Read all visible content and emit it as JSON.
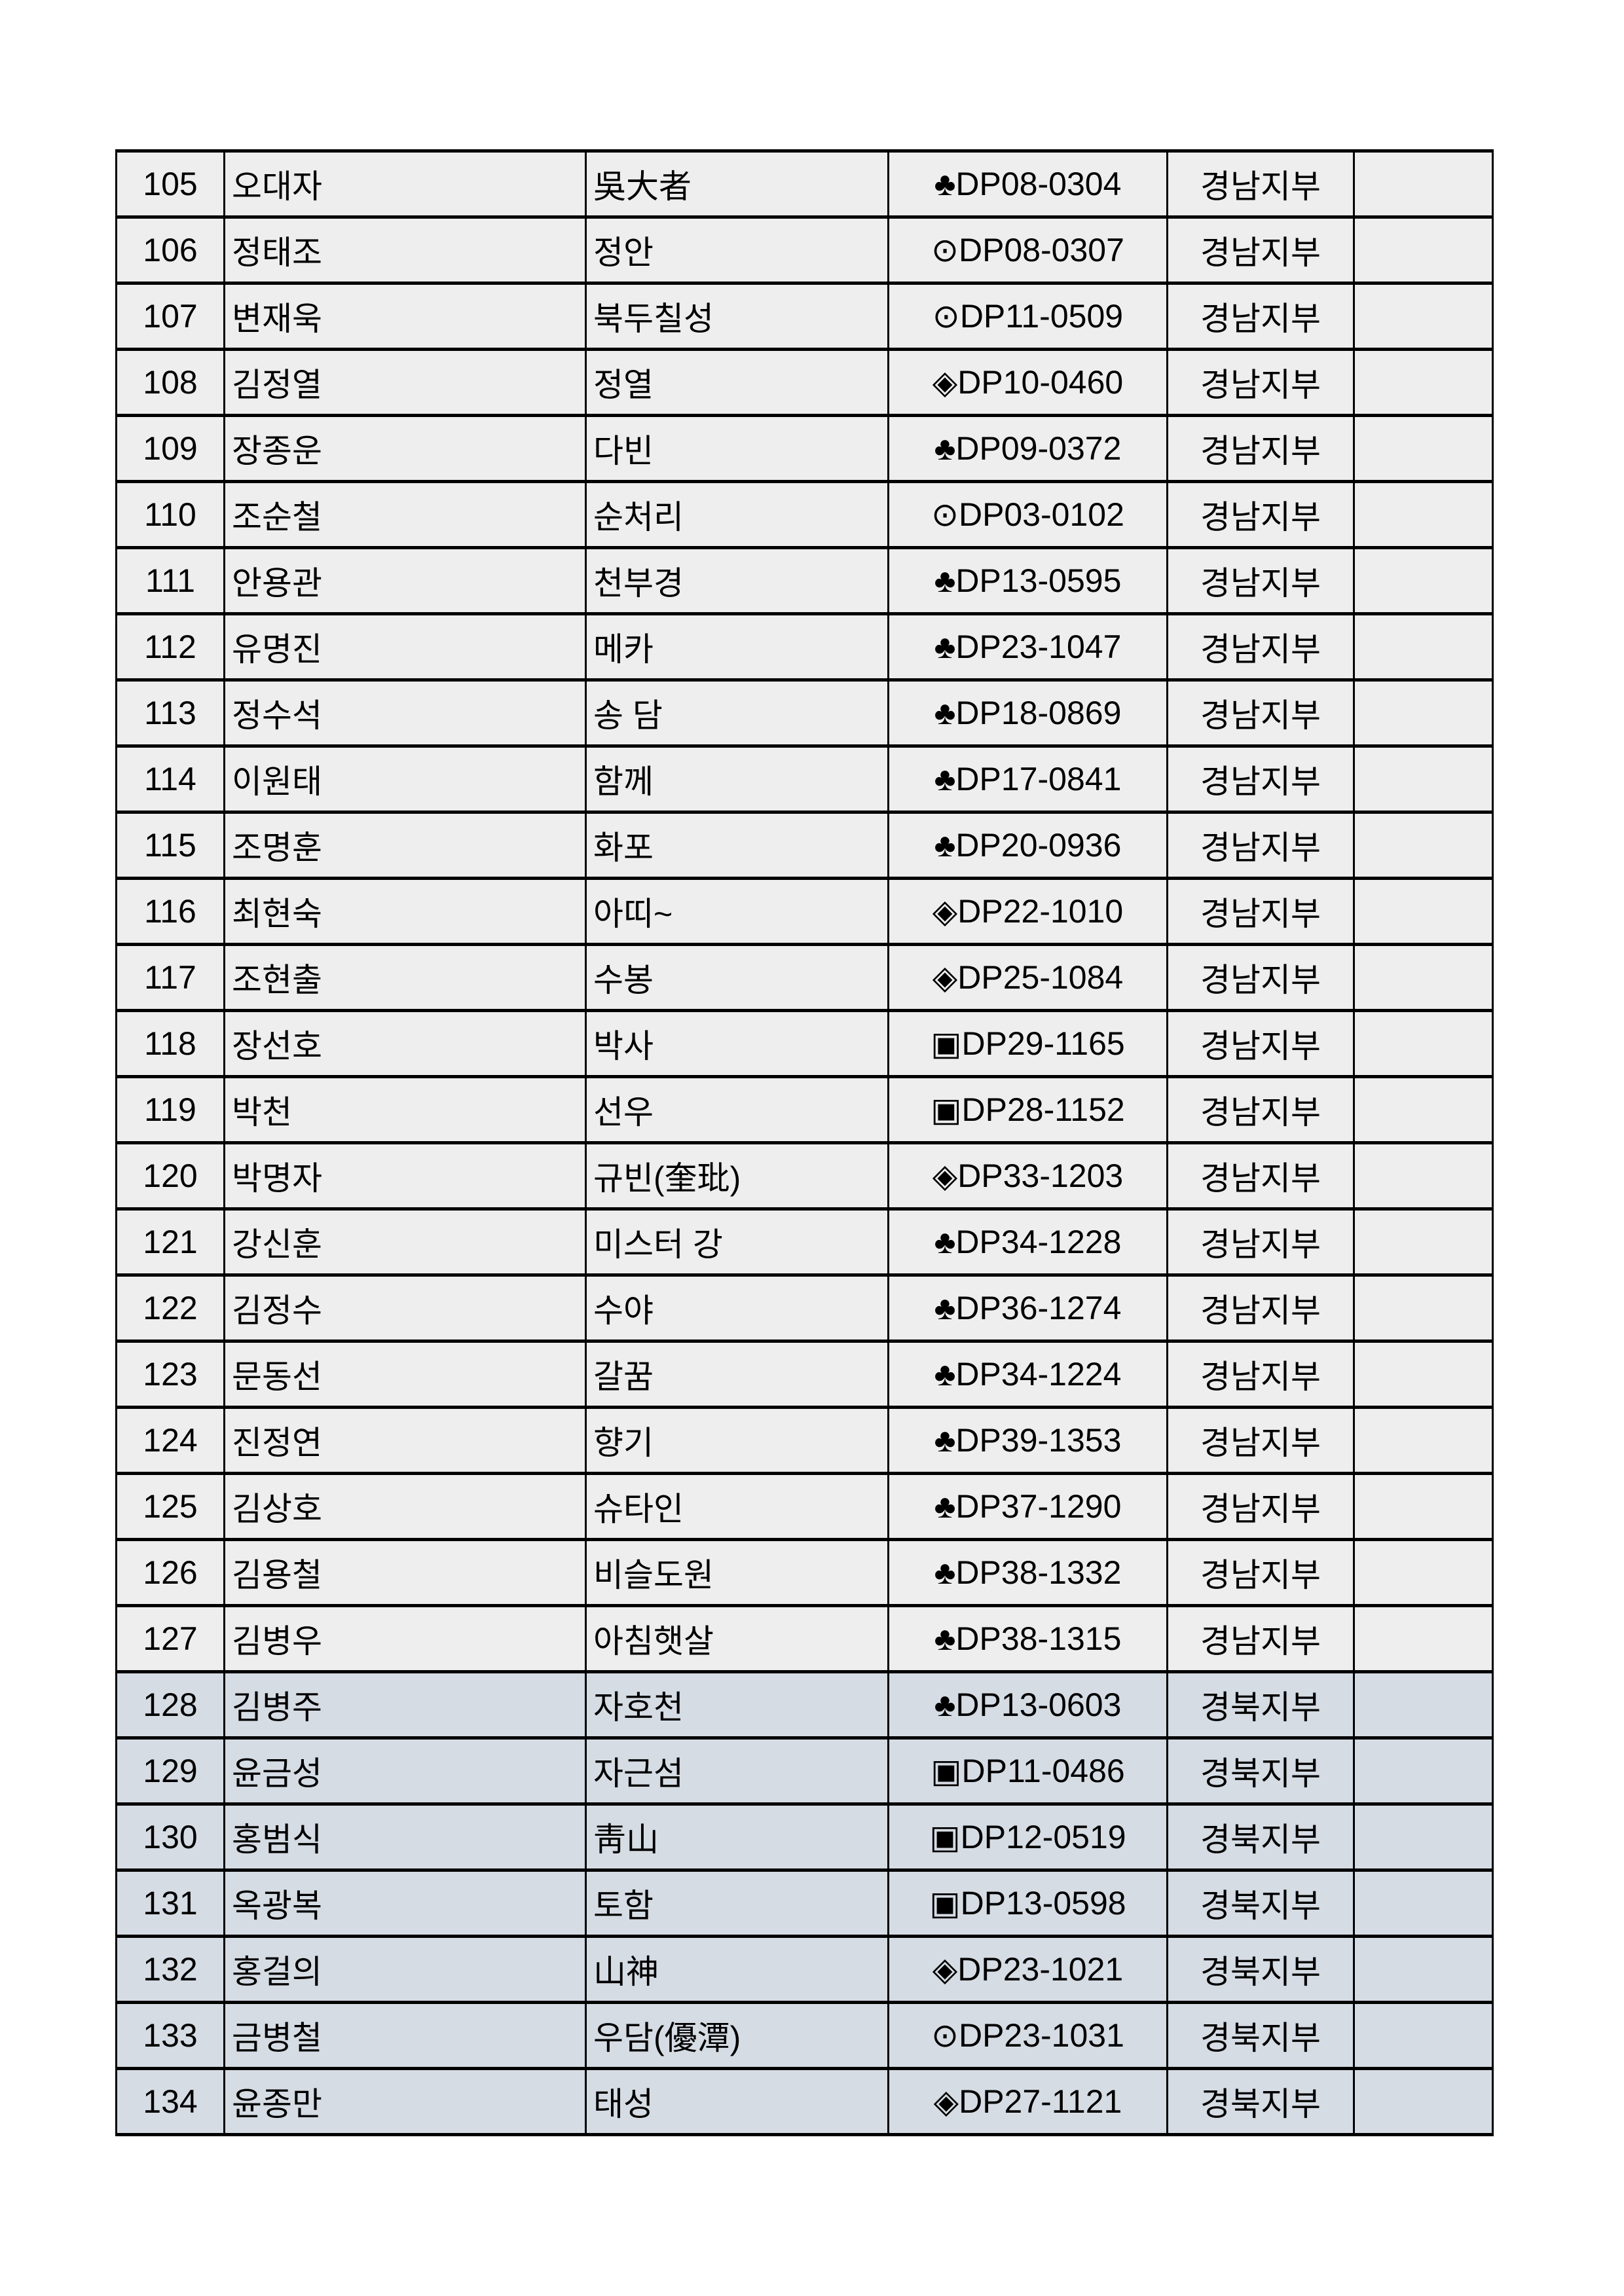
{
  "colors": {
    "gyeongnam_row": "#eeeeee",
    "gyeongbuk_row": "#d6dce4",
    "border": "#000000"
  },
  "rows": [
    {
      "no": "105",
      "name": "오대자",
      "nick": "吳大者",
      "code": "♣DP08-0304",
      "branch": "경남지부",
      "note": ""
    },
    {
      "no": "106",
      "name": "정태조",
      "nick": "정안",
      "code": "⊙DP08-0307",
      "branch": "경남지부",
      "note": ""
    },
    {
      "no": "107",
      "name": "변재욱",
      "nick": "북두칠성",
      "code": "⊙DP11-0509",
      "branch": "경남지부",
      "note": ""
    },
    {
      "no": "108",
      "name": "김정열",
      "nick": "정열",
      "code": "◈DP10-0460",
      "branch": "경남지부",
      "note": ""
    },
    {
      "no": "109",
      "name": "장종운",
      "nick": "다빈",
      "code": "♣DP09-0372",
      "branch": "경남지부",
      "note": ""
    },
    {
      "no": "110",
      "name": "조순철",
      "nick": "순처리",
      "code": "⊙DP03-0102",
      "branch": "경남지부",
      "note": ""
    },
    {
      "no": "111",
      "name": "안용관",
      "nick": "천부경",
      "code": "♣DP13-0595",
      "branch": "경남지부",
      "note": ""
    },
    {
      "no": "112",
      "name": "유명진",
      "nick": "메카",
      "code": "♣DP23-1047",
      "branch": "경남지부",
      "note": ""
    },
    {
      "no": "113",
      "name": "정수석",
      "nick": "송 담",
      "code": "♣DP18-0869",
      "branch": "경남지부",
      "note": ""
    },
    {
      "no": "114",
      "name": "이원태",
      "nick": "함께",
      "code": "♣DP17-0841",
      "branch": "경남지부",
      "note": ""
    },
    {
      "no": "115",
      "name": "조명훈",
      "nick": "화포",
      "code": "♣DP20-0936",
      "branch": "경남지부",
      "note": ""
    },
    {
      "no": "116",
      "name": "최현숙",
      "nick": "아띠~",
      "code": "◈DP22-1010",
      "branch": "경남지부",
      "note": ""
    },
    {
      "no": "117",
      "name": "조현출",
      "nick": "수봉",
      "code": "◈DP25-1084",
      "branch": "경남지부",
      "note": ""
    },
    {
      "no": "118",
      "name": "장선호",
      "nick": "박사",
      "code": "▣DP29-1165",
      "branch": "경남지부",
      "note": ""
    },
    {
      "no": "119",
      "name": "박천",
      "nick": "선우",
      "code": "▣DP28-1152",
      "branch": "경남지부",
      "note": ""
    },
    {
      "no": "120",
      "name": "박명자",
      "nick": "규빈(奎玭)",
      "code": "◈DP33-1203",
      "branch": "경남지부",
      "note": ""
    },
    {
      "no": "121",
      "name": "강신훈",
      "nick": "미스터 강",
      "code": "♣DP34-1228",
      "branch": "경남지부",
      "note": ""
    },
    {
      "no": "122",
      "name": "김정수",
      "nick": "수야",
      "code": "♣DP36-1274",
      "branch": "경남지부",
      "note": ""
    },
    {
      "no": "123",
      "name": "문동선",
      "nick": "갈꿈",
      "code": "♣DP34-1224",
      "branch": "경남지부",
      "note": ""
    },
    {
      "no": "124",
      "name": "진정연",
      "nick": "향기",
      "code": "♣DP39-1353",
      "branch": "경남지부",
      "note": ""
    },
    {
      "no": "125",
      "name": "김상호",
      "nick": "슈타인",
      "code": "♣DP37-1290",
      "branch": "경남지부",
      "note": ""
    },
    {
      "no": "126",
      "name": "김용철",
      "nick": "비슬도원",
      "code": "♣DP38-1332",
      "branch": "경남지부",
      "note": ""
    },
    {
      "no": "127",
      "name": "김병우",
      "nick": "아침햇살",
      "code": "♣DP38-1315",
      "branch": "경남지부",
      "note": ""
    },
    {
      "no": "128",
      "name": "김병주",
      "nick": "자호천",
      "code": "♣DP13-0603",
      "branch": "경북지부",
      "note": ""
    },
    {
      "no": "129",
      "name": "윤금성",
      "nick": "자근섬",
      "code": "▣DP11-0486",
      "branch": "경북지부",
      "note": ""
    },
    {
      "no": "130",
      "name": "홍범식",
      "nick": "靑山",
      "code": "▣DP12-0519",
      "branch": "경북지부",
      "note": ""
    },
    {
      "no": "131",
      "name": "옥광복",
      "nick": "토함",
      "code": "▣DP13-0598",
      "branch": "경북지부",
      "note": ""
    },
    {
      "no": "132",
      "name": "홍걸의",
      "nick": "山神",
      "code": "◈DP23-1021",
      "branch": "경북지부",
      "note": ""
    },
    {
      "no": "133",
      "name": "금병철",
      "nick": "우담(優潭)",
      "code": "⊙DP23-1031",
      "branch": "경북지부",
      "note": ""
    },
    {
      "no": "134",
      "name": "윤종만",
      "nick": "태성",
      "code": "◈DP27-1121",
      "branch": "경북지부",
      "note": ""
    }
  ]
}
